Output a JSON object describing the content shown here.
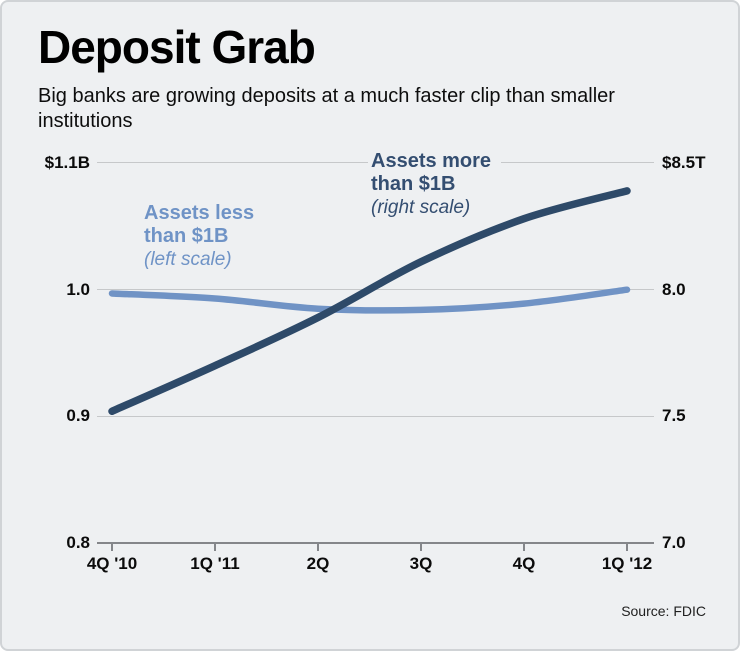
{
  "chart_data": {
    "type": "line",
    "title": "Deposit Grab",
    "subtitle": "Big banks are growing deposits at a much faster clip than smaller institutions",
    "categories": [
      "4Q '10",
      "1Q '11",
      "2Q",
      "3Q",
      "4Q",
      "1Q '12"
    ],
    "series": [
      {
        "name": "Assets less than $1B",
        "label_lines": [
          "Assets less",
          "than $1B"
        ],
        "scale_note": "(left scale)",
        "axis": "left",
        "color": "#7093c5",
        "stroke_width": 6.5,
        "values": [
          0.997,
          0.993,
          0.985,
          0.984,
          0.989,
          1.0
        ]
      },
      {
        "name": "Assets more than $1B",
        "label_lines": [
          "Assets more",
          "than $1B"
        ],
        "scale_note": "(right scale)",
        "axis": "right",
        "color": "#2e4a69",
        "stroke_width": 7.5,
        "values": [
          7.52,
          7.7,
          7.89,
          8.11,
          8.28,
          8.39
        ]
      }
    ],
    "left_axis": {
      "tick_labels": [
        "$1.1B",
        "1.0",
        "0.9",
        "0.8"
      ],
      "range": [
        0.8,
        1.1
      ]
    },
    "right_axis": {
      "tick_labels": [
        "$8.5T",
        "8.0",
        "7.5",
        "7.0"
      ],
      "range": [
        7.0,
        8.5
      ]
    },
    "grid": true,
    "legend_position": "inline-annotations",
    "source": "Source: FDIC"
  }
}
